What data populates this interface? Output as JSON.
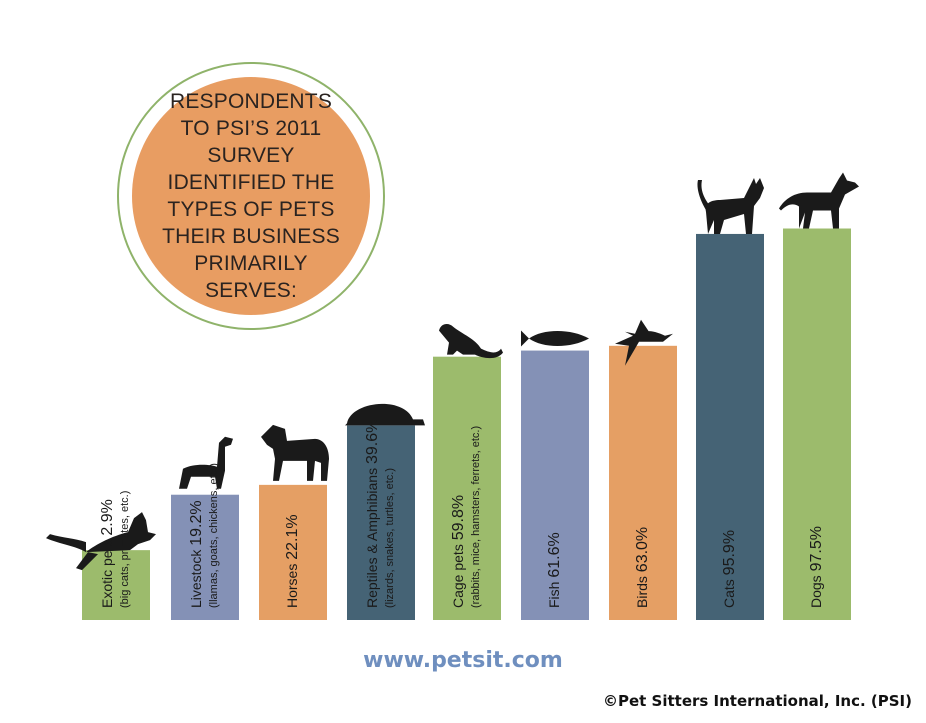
{
  "title": "RESPONDENTS TO PSI’S 2011 SURVEY IDENTIFIED THE TYPES OF PETS THEIR BUSINESS PRIMARILY SERVES:",
  "footer": {
    "url": "www.petsit.com",
    "copyright": "©Pet Sitters International, Inc. (PSI)"
  },
  "colors": {
    "green": "#9cbb6c",
    "lavender": "#8491b6",
    "orange": "#e59f64",
    "teal": "#456375",
    "circle_fill": "#e89d62",
    "circle_ring": "#8fb36a",
    "silhouette": "#1a1a1a"
  },
  "chart_data": {
    "type": "bar",
    "title": "RESPONDENTS TO PSI’S 2011 SURVEY IDENTIFIED THE TYPES OF PETS THEIR BUSINESS PRIMARILY SERVES:",
    "unit": "%",
    "ylim": [
      0,
      100
    ],
    "grid": false,
    "categories": [
      "Exotic pets",
      "Livestock",
      "Horses",
      "Reptiles & Amphibians",
      "Cage pets",
      "Fish",
      "Birds",
      "Cats",
      "Dogs"
    ],
    "values": [
      2.9,
      19.2,
      22.1,
      39.6,
      59.8,
      61.6,
      63.0,
      95.9,
      97.5
    ],
    "labels": [
      {
        "main": "Exotic pets",
        "value": "2.9%",
        "sub": "(big cats, primates, etc.)"
      },
      {
        "main": "Livestock",
        "value": "19.2%",
        "sub": "(llamas, goats, chickens, etc.)"
      },
      {
        "main": "Horses",
        "value": "22.1%",
        "sub": ""
      },
      {
        "main": "Reptiles & Amphibians",
        "value": "39.6%",
        "sub": "(lizards, snakes, turtles, etc.)"
      },
      {
        "main": "Cage pets",
        "value": "59.8%",
        "sub": "(rabbits, mice, hamsters, ferrets, etc.)"
      },
      {
        "main": "Fish",
        "value": "61.6%",
        "sub": ""
      },
      {
        "main": "Birds",
        "value": "63.0%",
        "sub": ""
      },
      {
        "main": "Cats",
        "value": "95.9%",
        "sub": ""
      },
      {
        "main": "Dogs",
        "value": "97.5%",
        "sub": ""
      }
    ],
    "bar_colors": [
      "green",
      "lavender",
      "orange",
      "teal",
      "green",
      "lavender",
      "orange",
      "teal",
      "green"
    ],
    "icons": [
      "panther-icon",
      "llama-icon",
      "horse-icon",
      "turtle-icon",
      "ferret-icon",
      "fish-icon",
      "bird-icon",
      "cat-icon",
      "dog-icon"
    ]
  }
}
